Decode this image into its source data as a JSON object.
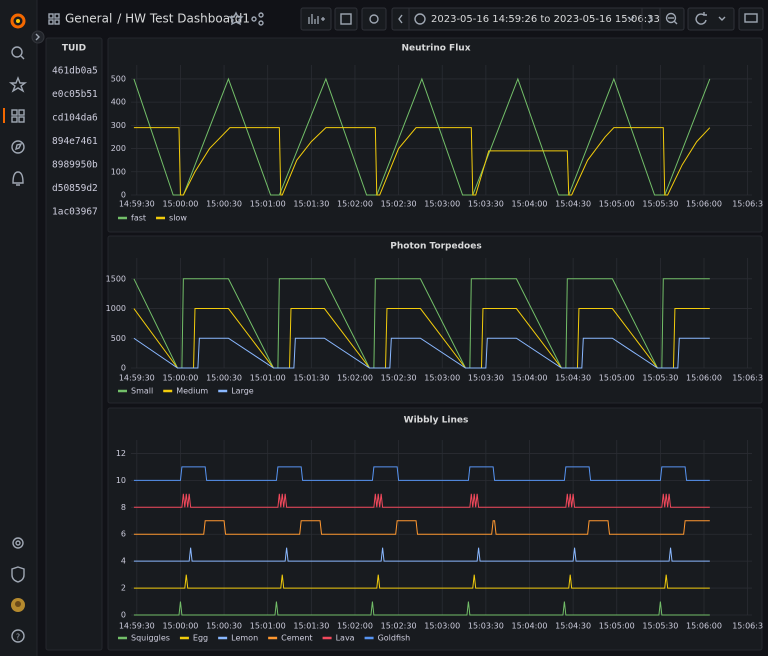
{
  "header": {
    "folder": "General",
    "title": "/ HW Test Dashboard1",
    "time_range": "2023-05-16 14:59:26 to 2023-05-16 15:06:33"
  },
  "table": {
    "columns": [
      "TUID"
    ],
    "rows": [
      [
        "461db0a5"
      ],
      [
        "e0c05b51"
      ],
      [
        "cd104da6"
      ],
      [
        "894e7461"
      ],
      [
        "8989950b"
      ],
      [
        "d50859d2"
      ],
      [
        "1ac03967"
      ]
    ]
  },
  "chart_data": [
    {
      "type": "line",
      "title": "Neutrino Flux",
      "grid": true,
      "xlim": [
        "14:59:26",
        "15:06:33"
      ],
      "xticks": [
        "14:59:30",
        "15:00:00",
        "15:00:30",
        "15:01:00",
        "15:01:30",
        "15:02:00",
        "15:02:30",
        "15:03:00",
        "15:03:30",
        "15:04:00",
        "15:04:30",
        "15:05:00",
        "15:05:30",
        "15:06:00",
        "15:06:3"
      ],
      "ylim": [
        0,
        560
      ],
      "yticks": [
        0,
        100,
        200,
        300,
        400,
        500
      ],
      "series": [
        {
          "name": "fast",
          "color": "#73bf69",
          "x": [
            "14:59:28",
            "14:59:55",
            "15:00:02",
            "15:00:33",
            "15:01:02",
            "15:01:08",
            "15:01:40",
            "15:02:08",
            "15:02:15",
            "15:02:46",
            "15:03:14",
            "15:03:21",
            "15:03:52",
            "15:04:20",
            "15:04:27",
            "15:04:58",
            "15:05:26",
            "15:05:33",
            "15:06:04"
          ],
          "values": [
            500,
            0,
            0,
            500,
            0,
            0,
            500,
            0,
            0,
            500,
            0,
            0,
            500,
            0,
            0,
            500,
            0,
            0,
            500
          ]
        },
        {
          "name": "slow",
          "color": "#f2cc0c",
          "x": [
            "14:59:28",
            "14:59:59",
            "15:00:00",
            "15:00:02",
            "15:00:10",
            "15:00:20",
            "15:00:34",
            "15:01:08",
            "15:01:09",
            "15:01:10",
            "15:01:20",
            "15:01:30",
            "15:01:40",
            "15:02:14",
            "15:02:15",
            "15:02:17",
            "15:02:30",
            "15:02:42",
            "15:03:20",
            "15:03:21",
            "15:03:23",
            "15:03:32",
            "15:04:26",
            "15:04:27",
            "15:04:29",
            "15:04:40",
            "15:04:52",
            "15:04:58",
            "15:05:32",
            "15:05:33",
            "15:05:35",
            "15:05:45",
            "15:05:55",
            "15:06:04"
          ],
          "values": [
            290,
            290,
            0,
            0,
            100,
            200,
            290,
            290,
            0,
            0,
            150,
            230,
            290,
            290,
            0,
            0,
            200,
            290,
            290,
            0,
            0,
            190,
            190,
            0,
            0,
            150,
            250,
            290,
            290,
            0,
            0,
            130,
            230,
            290
          ]
        }
      ]
    },
    {
      "type": "line",
      "title": "Photon Torpedoes",
      "grid": true,
      "xlim": [
        "14:59:26",
        "15:06:33"
      ],
      "xticks": [
        "14:59:30",
        "15:00:00",
        "15:00:30",
        "15:01:00",
        "15:01:30",
        "15:02:00",
        "15:02:30",
        "15:03:00",
        "15:03:30",
        "15:04:00",
        "15:04:30",
        "15:05:00",
        "15:05:30",
        "15:06:00",
        "15:06:3"
      ],
      "ylim": [
        0,
        1850
      ],
      "yticks": [
        0,
        500,
        1000,
        1500
      ],
      "series": [
        {
          "name": "Small",
          "color": "#73bf69",
          "x": [
            "14:59:28",
            "14:59:58",
            "15:00:01",
            "15:00:02",
            "15:00:33",
            "15:01:04",
            "15:01:07",
            "15:01:08",
            "15:01:39",
            "15:02:10",
            "15:02:13",
            "15:02:14",
            "15:02:45",
            "15:03:16",
            "15:03:19",
            "15:03:20",
            "15:03:51",
            "15:04:22",
            "15:04:25",
            "15:04:26",
            "15:04:57",
            "15:05:28",
            "15:05:31",
            "15:05:32",
            "15:06:04"
          ],
          "values": [
            1500,
            0,
            0,
            1500,
            1500,
            0,
            0,
            1500,
            1500,
            0,
            0,
            1500,
            1500,
            0,
            0,
            1500,
            1500,
            0,
            0,
            1500,
            1500,
            0,
            0,
            1500,
            1500
          ]
        },
        {
          "name": "Medium",
          "color": "#f2cc0c",
          "x": [
            "14:59:28",
            "14:59:58",
            "15:00:09",
            "15:00:10",
            "15:00:33",
            "15:01:04",
            "15:01:15",
            "15:01:16",
            "15:01:39",
            "15:02:10",
            "15:02:21",
            "15:02:22",
            "15:02:45",
            "15:03:16",
            "15:03:27",
            "15:03:28",
            "15:03:51",
            "15:04:22",
            "15:04:33",
            "15:04:34",
            "15:04:57",
            "15:05:28",
            "15:05:39",
            "15:05:40",
            "15:06:04"
          ],
          "values": [
            1000,
            0,
            0,
            1000,
            1000,
            0,
            0,
            1000,
            1000,
            0,
            0,
            1000,
            1000,
            0,
            0,
            1000,
            1000,
            0,
            0,
            1000,
            1000,
            0,
            0,
            1000,
            1000
          ]
        },
        {
          "name": "Large",
          "color": "#8ab8ff",
          "x": [
            "14:59:28",
            "14:59:58",
            "15:00:12",
            "15:00:13",
            "15:00:33",
            "15:01:04",
            "15:01:18",
            "15:01:19",
            "15:01:39",
            "15:02:10",
            "15:02:24",
            "15:02:25",
            "15:02:45",
            "15:03:16",
            "15:03:30",
            "15:03:31",
            "15:03:51",
            "15:04:22",
            "15:04:36",
            "15:04:37",
            "15:04:57",
            "15:05:28",
            "15:05:42",
            "15:05:43",
            "15:06:04"
          ],
          "values": [
            500,
            0,
            0,
            500,
            500,
            0,
            0,
            500,
            500,
            0,
            0,
            500,
            500,
            0,
            0,
            500,
            500,
            0,
            0,
            500,
            500,
            0,
            0,
            500,
            500
          ]
        }
      ]
    },
    {
      "type": "line",
      "title": "Wibbly Lines",
      "grid": true,
      "xlim": [
        "14:59:26",
        "15:06:33"
      ],
      "xticks": [
        "14:59:30",
        "15:00:00",
        "15:00:30",
        "15:01:00",
        "15:01:30",
        "15:02:00",
        "15:02:30",
        "15:03:00",
        "15:03:30",
        "15:04:00",
        "15:04:30",
        "15:05:00",
        "15:05:30",
        "15:06:00",
        "15:06:3"
      ],
      "ylim": [
        0,
        13
      ],
      "yticks": [
        0,
        2,
        4,
        6,
        8,
        10,
        12
      ],
      "series": [
        {
          "name": "Squiggles",
          "color": "#73bf69",
          "x": [
            "14:59:28",
            "14:59:59",
            "15:00:00",
            "15:00:01",
            "15:01:05",
            "15:01:06",
            "15:01:07",
            "15:02:11",
            "15:02:12",
            "15:02:13",
            "15:03:17",
            "15:03:18",
            "15:03:19",
            "15:04:23",
            "15:04:24",
            "15:04:25",
            "15:05:29",
            "15:05:30",
            "15:05:31",
            "15:06:04"
          ],
          "values": [
            0,
            0,
            1,
            0,
            0,
            1,
            0,
            0,
            1,
            0,
            0,
            1,
            0,
            0,
            1,
            0,
            0,
            1,
            0,
            0
          ]
        },
        {
          "name": "Egg",
          "color": "#f2cc0c",
          "x": [
            "14:59:28",
            "15:00:03",
            "15:00:04",
            "15:00:05",
            "15:01:09",
            "15:01:10",
            "15:01:11",
            "15:02:15",
            "15:02:16",
            "15:02:17",
            "15:03:21",
            "15:03:22",
            "15:03:23",
            "15:04:27",
            "15:04:28",
            "15:04:29",
            "15:05:33",
            "15:05:34",
            "15:05:35",
            "15:06:04"
          ],
          "values": [
            2,
            2,
            3,
            2,
            2,
            3,
            2,
            2,
            3,
            2,
            2,
            3,
            2,
            2,
            3,
            2,
            2,
            3,
            2,
            2
          ]
        },
        {
          "name": "Lemon",
          "color": "#8ab8ff",
          "x": [
            "14:59:28",
            "15:00:06",
            "15:00:07",
            "15:00:08",
            "15:01:12",
            "15:01:13",
            "15:01:14",
            "15:02:18",
            "15:02:19",
            "15:02:20",
            "15:03:24",
            "15:03:25",
            "15:03:26",
            "15:04:30",
            "15:04:31",
            "15:04:32",
            "15:05:36",
            "15:05:37",
            "15:05:38",
            "15:06:04"
          ],
          "values": [
            4,
            4,
            5,
            4,
            4,
            5,
            4,
            4,
            5,
            4,
            4,
            5,
            4,
            4,
            5,
            4,
            4,
            5,
            4,
            4
          ]
        },
        {
          "name": "Cement",
          "color": "#ff9830",
          "x": [
            "14:59:28",
            "15:00:16",
            "15:00:17",
            "15:00:30",
            "15:00:31",
            "15:01:22",
            "15:01:23",
            "15:01:36",
            "15:01:37",
            "15:02:28",
            "15:02:29",
            "15:02:42",
            "15:02:43",
            "15:03:34",
            "15:03:35",
            "15:03:36",
            "15:03:37",
            "15:04:40",
            "15:04:41",
            "15:04:54",
            "15:04:55",
            "15:05:46",
            "15:05:47",
            "15:06:04"
          ],
          "values": [
            6,
            6,
            7,
            7,
            6,
            6,
            7,
            7,
            6,
            6,
            7,
            7,
            6,
            6,
            7,
            7,
            6,
            6,
            7,
            7,
            6,
            6,
            7,
            7
          ]
        },
        {
          "name": "Lava",
          "color": "#f2495c",
          "x": [
            "14:59:28",
            "15:00:01",
            "15:00:02",
            "15:00:03",
            "15:00:04",
            "15:00:05",
            "15:00:06",
            "15:00:07",
            "15:01:07",
            "15:01:08",
            "15:01:09",
            "15:01:10",
            "15:01:11",
            "15:01:12",
            "15:01:13",
            "15:02:13",
            "15:02:14",
            "15:02:15",
            "15:02:16",
            "15:02:17",
            "15:02:18",
            "15:02:19",
            "15:03:19",
            "15:03:20",
            "15:03:21",
            "15:03:22",
            "15:03:23",
            "15:03:24",
            "15:03:25",
            "15:04:25",
            "15:04:26",
            "15:04:27",
            "15:04:28",
            "15:04:29",
            "15:04:30",
            "15:04:31",
            "15:05:31",
            "15:05:32",
            "15:05:33",
            "15:05:34",
            "15:05:35",
            "15:05:36",
            "15:05:37",
            "15:06:04"
          ],
          "values": [
            8,
            8,
            9,
            8,
            9,
            8,
            9,
            8,
            8,
            9,
            8,
            9,
            8,
            9,
            8,
            8,
            9,
            8,
            9,
            8,
            9,
            8,
            8,
            9,
            8,
            9,
            8,
            9,
            8,
            8,
            9,
            8,
            9,
            8,
            9,
            8,
            8,
            9,
            8,
            9,
            8,
            9,
            8,
            8
          ]
        },
        {
          "name": "Goldfish",
          "color": "#5794f2",
          "x": [
            "14:59:28",
            "15:00:00",
            "15:00:01",
            "15:00:17",
            "15:00:18",
            "15:01:06",
            "15:01:07",
            "15:01:23",
            "15:01:24",
            "15:02:12",
            "15:02:13",
            "15:02:29",
            "15:02:30",
            "15:03:18",
            "15:03:19",
            "15:03:35",
            "15:03:36",
            "15:04:24",
            "15:04:25",
            "15:04:41",
            "15:04:42",
            "15:05:30",
            "15:05:31",
            "15:05:47",
            "15:05:48",
            "15:06:04"
          ],
          "values": [
            10,
            10,
            11,
            11,
            10,
            10,
            11,
            11,
            10,
            10,
            11,
            11,
            10,
            10,
            11,
            11,
            10,
            10,
            11,
            11,
            10,
            10,
            11,
            11,
            10,
            10
          ]
        }
      ]
    }
  ]
}
